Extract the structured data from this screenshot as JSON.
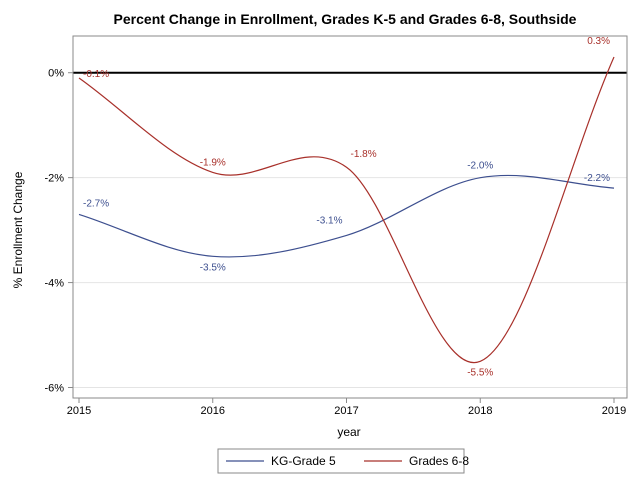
{
  "chart_data": {
    "type": "line",
    "title": "Percent Change in Enrollment, Grades K-5 and Grades 6-8, Southside",
    "xlabel": "year",
    "ylabel": "% Enrollment Change",
    "x": [
      2015,
      2016,
      2017,
      2018,
      2019
    ],
    "x_ticks": [
      "2015",
      "2016",
      "2017",
      "2018",
      "2019"
    ],
    "xlim": [
      2015,
      2019
    ],
    "ylim": [
      -6.2,
      0.7
    ],
    "y_ticks": [
      0,
      -2,
      -4,
      -6
    ],
    "y_tick_labels": [
      "0%",
      "-2%",
      "-4%",
      "-6%"
    ],
    "reference_line": 0,
    "grid": true,
    "legend_position": "bottom",
    "series": [
      {
        "name": "KG-Grade 5",
        "color": "#3d4f8f",
        "values": [
          -2.7,
          -3.5,
          -3.1,
          -2.0,
          -2.2
        ],
        "labels": [
          "-2.7%",
          "-3.5%",
          "-3.1%",
          "-2.0%",
          "-2.2%"
        ]
      },
      {
        "name": "Grades 6-8",
        "color": "#a8302a",
        "values": [
          -0.1,
          -1.9,
          -1.8,
          -5.5,
          0.3
        ],
        "labels": [
          "-0.1%",
          "-1.9%",
          "-1.8%",
          "-5.5%",
          "0.3%"
        ]
      }
    ]
  }
}
